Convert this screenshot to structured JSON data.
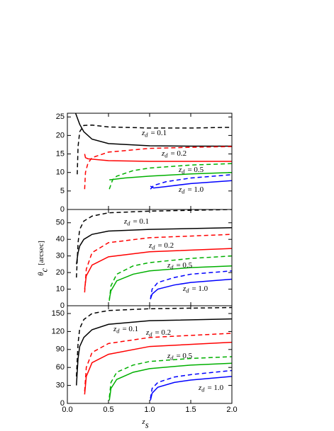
{
  "chart_data": [
    {
      "type": "line",
      "ylim": [
        0,
        26
      ],
      "yticks": [
        0,
        5,
        10,
        15,
        20,
        25
      ],
      "series": [
        {
          "color": "#000000",
          "style": "dashed",
          "x": [
            0.12,
            0.13,
            0.15,
            0.2,
            0.3,
            0.5,
            1.0,
            1.5,
            2.0
          ],
          "values": [
            9.5,
            17,
            21,
            22.7,
            22.8,
            22.3,
            22,
            22,
            22.2
          ]
        },
        {
          "color": "#000000",
          "style": "solid",
          "x": [
            0.1,
            0.15,
            0.2,
            0.3,
            0.5,
            1.0,
            1.5,
            2.0
          ],
          "values": [
            26,
            23,
            21,
            19,
            17.8,
            17.2,
            17.1,
            17.1
          ]
        },
        {
          "color": "#ff0000",
          "style": "dashed",
          "x": [
            0.21,
            0.22,
            0.25,
            0.3,
            0.5,
            1.0,
            1.5,
            2.0
          ],
          "values": [
            5.5,
            10,
            12.5,
            14,
            15.5,
            16.5,
            16.8,
            17
          ]
        },
        {
          "color": "#ff0000",
          "style": "solid",
          "x": [
            0.21,
            0.22,
            0.25,
            0.5,
            1.0,
            2.0
          ],
          "values": [
            15,
            14,
            13.7,
            13.2,
            13,
            13
          ]
        },
        {
          "color": "#00b000",
          "style": "dashed",
          "x": [
            0.51,
            0.55,
            0.6,
            0.8,
            1.0,
            1.5,
            2.0
          ],
          "values": [
            5.5,
            8,
            9,
            10.5,
            11.2,
            12,
            12.4
          ]
        },
        {
          "color": "#00b000",
          "style": "solid",
          "x": [
            0.51,
            0.55,
            0.7,
            1.0,
            1.5,
            2.0
          ],
          "values": [
            8,
            8.1,
            8.5,
            9,
            9.6,
            10
          ]
        },
        {
          "color": "#0000ff",
          "style": "dashed",
          "x": [
            1.01,
            1.05,
            1.2,
            1.5,
            2.0
          ],
          "values": [
            5.5,
            6.5,
            7.5,
            8.5,
            9.4
          ]
        },
        {
          "color": "#0000ff",
          "style": "solid",
          "x": [
            1.01,
            1.05,
            1.2,
            1.5,
            2.0
          ],
          "values": [
            6.3,
            5.8,
            6.2,
            7,
            7.8
          ]
        }
      ],
      "annotations": [
        {
          "var": "z",
          "sub": "d",
          "text": "= 0.1"
        },
        {
          "var": "z",
          "sub": "d",
          "text": "= 0.2"
        },
        {
          "var": "z",
          "sub": "d",
          "text": "= 0.5"
        },
        {
          "var": "z",
          "sub": "d",
          "text": "= 1.0"
        }
      ]
    },
    {
      "type": "line",
      "ylim": [
        0,
        58
      ],
      "yticks": [
        0,
        10,
        20,
        30,
        40,
        50
      ],
      "ylabel": {
        "var": "θ",
        "sub": "c",
        "text": "[arcsec]"
      },
      "series": [
        {
          "color": "#000000",
          "style": "dashed",
          "x": [
            0.11,
            0.13,
            0.15,
            0.2,
            0.3,
            0.5,
            1.0,
            2.0
          ],
          "values": [
            17,
            38,
            46,
            51,
            54,
            56,
            57,
            58
          ]
        },
        {
          "color": "#000000",
          "style": "solid",
          "x": [
            0.11,
            0.13,
            0.15,
            0.2,
            0.3,
            0.5,
            1.0,
            2.0
          ],
          "values": [
            25,
            32,
            36,
            40,
            43,
            45,
            46,
            47
          ]
        },
        {
          "color": "#ff0000",
          "style": "dashed",
          "x": [
            0.21,
            0.23,
            0.3,
            0.5,
            1.0,
            2.0
          ],
          "values": [
            8,
            22,
            32,
            38,
            41,
            43
          ]
        },
        {
          "color": "#ff0000",
          "style": "solid",
          "x": [
            0.21,
            0.23,
            0.3,
            0.5,
            1.0,
            2.0
          ],
          "values": [
            10,
            18,
            24.5,
            29.5,
            32.5,
            34.5
          ]
        },
        {
          "color": "#00b000",
          "style": "dashed",
          "x": [
            0.51,
            0.53,
            0.6,
            0.8,
            1.0,
            1.5,
            2.0
          ],
          "values": [
            3,
            12,
            19,
            24,
            26,
            28.5,
            30
          ]
        },
        {
          "color": "#00b000",
          "style": "solid",
          "x": [
            0.51,
            0.53,
            0.6,
            0.8,
            1.0,
            1.5,
            2.0
          ],
          "values": [
            4,
            9,
            15,
            19,
            21,
            23,
            24
          ]
        },
        {
          "color": "#0000ff",
          "style": "dashed",
          "x": [
            1.01,
            1.03,
            1.1,
            1.3,
            1.5,
            2.0
          ],
          "values": [
            4,
            10,
            14,
            17,
            19,
            21
          ]
        },
        {
          "color": "#0000ff",
          "style": "solid",
          "x": [
            1.01,
            1.03,
            1.1,
            1.3,
            1.5,
            2.0
          ],
          "values": [
            4,
            7,
            10,
            12.5,
            14,
            16
          ]
        }
      ],
      "annotations": [
        {
          "var": "z",
          "sub": "d",
          "text": "= 0.1"
        },
        {
          "var": "z",
          "sub": "d",
          "text": "= 0.2"
        },
        {
          "var": "z",
          "sub": "d",
          "text": "= 0.5"
        },
        {
          "var": "z",
          "sub": "d",
          "text": "= 1.0"
        }
      ]
    },
    {
      "type": "line",
      "ylim": [
        0,
        163
      ],
      "yticks": [
        0,
        30,
        60,
        90,
        120,
        150
      ],
      "xlim": [
        0,
        2
      ],
      "xticks": [
        {
          "value": 0,
          "label": "0.0"
        },
        0.5,
        {
          "value": 1,
          "label": "1.0"
        },
        1.5,
        {
          "value": 2,
          "label": "2.0"
        }
      ],
      "xlabel": {
        "var": "z",
        "sub": "s"
      },
      "series": [
        {
          "color": "#000000",
          "style": "dashed",
          "x": [
            0.11,
            0.13,
            0.15,
            0.2,
            0.3,
            0.5,
            1.0,
            2.0
          ],
          "values": [
            45,
            100,
            125,
            140,
            150,
            155,
            158,
            160
          ]
        },
        {
          "color": "#000000",
          "style": "solid",
          "x": [
            0.11,
            0.13,
            0.15,
            0.2,
            0.3,
            0.5,
            1.0,
            2.0
          ],
          "values": [
            30,
            75,
            95,
            110,
            123,
            132,
            138,
            141
          ]
        },
        {
          "color": "#ff0000",
          "style": "dashed",
          "x": [
            0.21,
            0.23,
            0.3,
            0.5,
            1.0,
            2.0
          ],
          "values": [
            20,
            60,
            85,
            100,
            110,
            117
          ]
        },
        {
          "color": "#ff0000",
          "style": "solid",
          "x": [
            0.21,
            0.23,
            0.3,
            0.5,
            1.0,
            2.0
          ],
          "values": [
            15,
            45,
            68,
            82,
            95,
            102
          ]
        },
        {
          "color": "#00b000",
          "style": "dashed",
          "x": [
            0.51,
            0.53,
            0.6,
            0.8,
            1.0,
            1.5,
            2.0
          ],
          "values": [
            10,
            35,
            52,
            64,
            70,
            75,
            78
          ]
        },
        {
          "color": "#00b000",
          "style": "solid",
          "x": [
            0.51,
            0.53,
            0.6,
            0.8,
            1.0,
            1.5,
            2.0
          ],
          "values": [
            5,
            25,
            40,
            52,
            58,
            64,
            67
          ]
        },
        {
          "color": "#0000ff",
          "style": "dashed",
          "x": [
            1.01,
            1.03,
            1.1,
            1.3,
            1.5,
            2.0
          ],
          "values": [
            8,
            25,
            35,
            44,
            48,
            55
          ]
        },
        {
          "color": "#0000ff",
          "style": "solid",
          "x": [
            1.01,
            1.03,
            1.1,
            1.3,
            1.5,
            2.0
          ],
          "values": [
            5,
            17,
            27,
            35,
            39,
            45
          ]
        }
      ],
      "annotations": [
        {
          "var": "z",
          "sub": "d",
          "text": "= 0.1"
        },
        {
          "var": "z",
          "sub": "d",
          "text": "= 0.2"
        },
        {
          "var": "z",
          "sub": "d",
          "text": "= 0.5"
        },
        {
          "var": "z",
          "sub": "d",
          "text": "= 1.0"
        }
      ]
    }
  ]
}
